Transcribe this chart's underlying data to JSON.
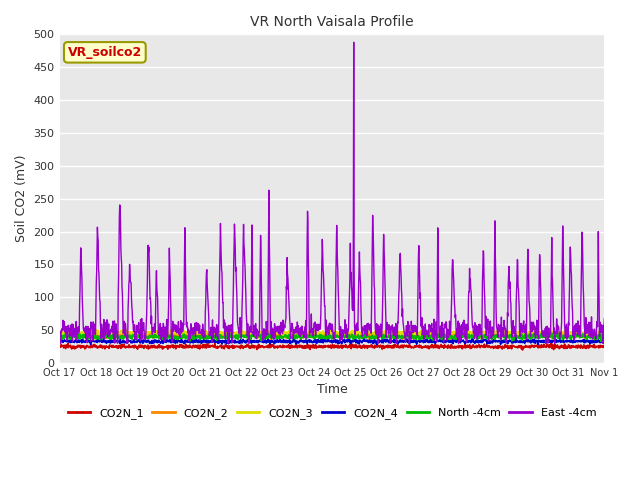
{
  "title": "VR North Vaisala Profile",
  "xlabel": "Time",
  "ylabel": "Soil CO2 (mV)",
  "ylim": [
    0,
    500
  ],
  "yticks": [
    0,
    50,
    100,
    150,
    200,
    250,
    300,
    350,
    400,
    450,
    500
  ],
  "plot_bg_color": "#e8e8e8",
  "fig_bg_color": "#ffffff",
  "annotation_text": "VR_soilco2",
  "annotation_bg": "#ffffcc",
  "annotation_border": "#999900",
  "annotation_text_color": "#cc0000",
  "series": [
    {
      "label": "CO2N_1",
      "color": "#cc0000"
    },
    {
      "label": "CO2N_2",
      "color": "#ff8800"
    },
    {
      "label": "CO2N_3",
      "color": "#dddd00"
    },
    {
      "label": "CO2N_4",
      "color": "#0000cc"
    },
    {
      "label": "North -4cm",
      "color": "#00bb00"
    },
    {
      "label": "East -4cm",
      "color": "#9900cc"
    }
  ],
  "xtick_labels": [
    "Oct 17",
    "Oct 18",
    "Oct 19",
    "Oct 20",
    "Oct 21",
    "Oct 22",
    "Oct 23",
    "Oct 24",
    "Oct 25",
    "Oct 26",
    "Oct 27",
    "Oct 28",
    "Oct 29",
    "Oct 30",
    "Oct 31",
    "Nov 1"
  ],
  "n_points": 1440,
  "seed": 12345
}
